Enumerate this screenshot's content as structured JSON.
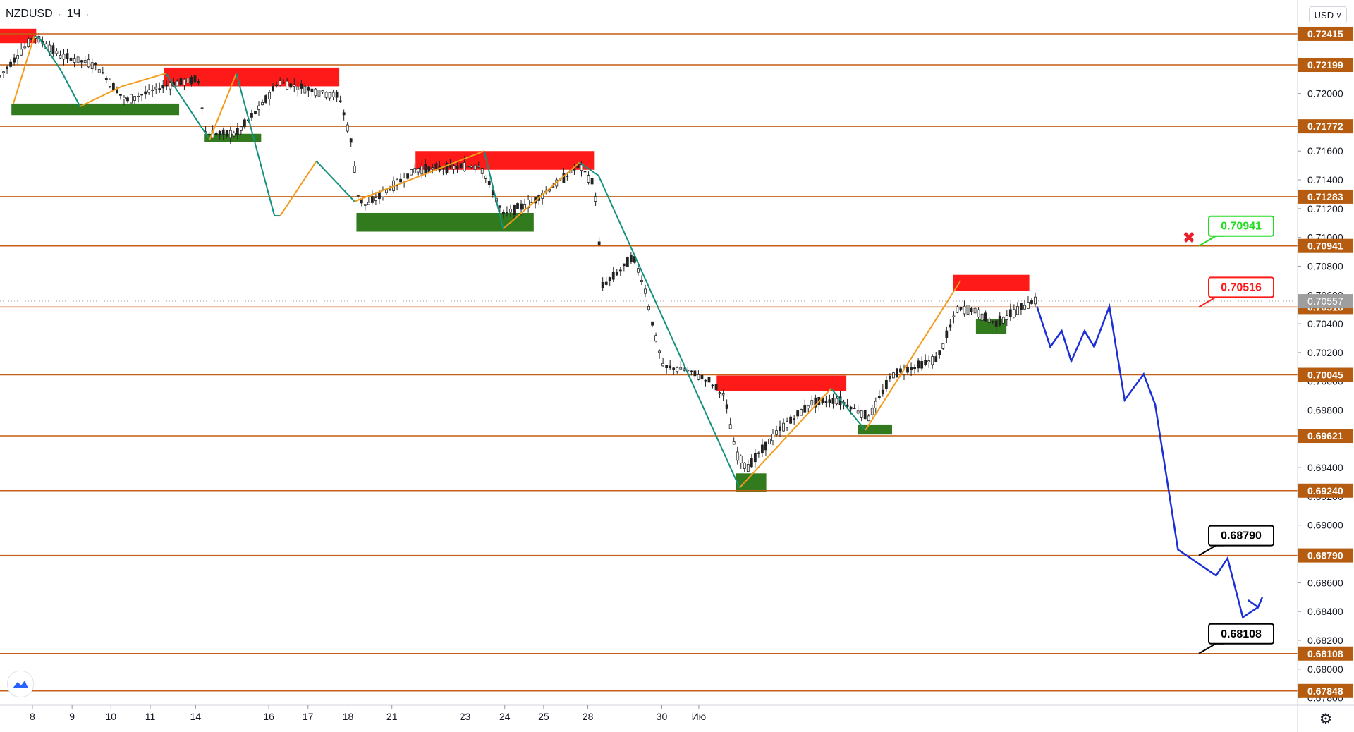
{
  "symbol": "NZDUSD",
  "interval": "1Ч",
  "currency_selector": "USD",
  "colors": {
    "level_line": "#c45f14",
    "level_label_bg": "#b65c10",
    "resistance_zone": "#ff1a1a",
    "support_zone": "#327a1e",
    "swing_up": "#f39b1a",
    "swing_down": "#14907e",
    "forecast": "#1a2fd6",
    "candle": "#222222",
    "price_badge": "#9e9e9e"
  },
  "price_axis": {
    "ticks": [
      "0.72000",
      "0.71600",
      "0.71400",
      "0.71200",
      "0.71000",
      "0.70800",
      "0.70600",
      "0.70400",
      "0.70200",
      "0.70000",
      "0.69800",
      "0.69600",
      "0.69400",
      "0.69200",
      "0.69000",
      "0.68600",
      "0.68400",
      "0.68200",
      "0.68000",
      "0.67800"
    ],
    "current_price": "0.70557"
  },
  "time_axis": {
    "labels": [
      "8",
      "9",
      "10",
      "11",
      "14",
      "16",
      "17",
      "18",
      "21",
      "23",
      "24",
      "25",
      "28",
      "30",
      "Ию"
    ]
  },
  "levels": [
    "0.72415",
    "0.72199",
    "0.71772",
    "0.71283",
    "0.70941",
    "0.70516",
    "0.70045",
    "0.69621",
    "0.69240",
    "0.68790",
    "0.68108",
    "0.67848"
  ],
  "callouts": [
    {
      "text": "0.70941",
      "color": "#22dd22",
      "kind": "stop"
    },
    {
      "text": "0.70516",
      "color": "#ff1a1a",
      "kind": "entry"
    },
    {
      "text": "0.68790",
      "color": "#000000",
      "kind": "target"
    },
    {
      "text": "0.68108",
      "color": "#000000",
      "kind": "target"
    }
  ],
  "stop_marker": "✖",
  "chart_data": {
    "type": "line",
    "title": "NZDUSD",
    "xlabel": "",
    "ylabel": "",
    "ylim": [
      0.677,
      0.7265
    ],
    "x_range": [
      0,
      34
    ],
    "grid": false,
    "horizontal_levels": [
      0.72415,
      0.72199,
      0.71772,
      0.71283,
      0.70941,
      0.70516,
      0.70045,
      0.69621,
      0.6924,
      0.6879,
      0.68108,
      0.67848
    ],
    "resistance_zones": [
      {
        "x": [
          0.0,
          0.95
        ],
        "y": [
          0.7235,
          0.7245
        ]
      },
      {
        "x": [
          4.3,
          8.9
        ],
        "y": [
          0.7205,
          0.7218
        ]
      },
      {
        "x": [
          10.9,
          15.6
        ],
        "y": [
          0.7147,
          0.716
        ]
      },
      {
        "x": [
          18.8,
          22.2
        ],
        "y": [
          0.6993,
          0.7004
        ]
      },
      {
        "x": [
          25.0,
          27.0
        ],
        "y": [
          0.7063,
          0.7074
        ]
      }
    ],
    "support_zones": [
      {
        "x": [
          0.3,
          4.7
        ],
        "y": [
          0.7185,
          0.7193
        ]
      },
      {
        "x": [
          5.35,
          6.85
        ],
        "y": [
          0.7166,
          0.7172
        ]
      },
      {
        "x": [
          9.35,
          14.0
        ],
        "y": [
          0.7104,
          0.7117
        ]
      },
      {
        "x": [
          19.3,
          20.1
        ],
        "y": [
          0.6923,
          0.6936
        ]
      },
      {
        "x": [
          22.5,
          23.4
        ],
        "y": [
          0.6963,
          0.697
        ]
      },
      {
        "x": [
          25.6,
          26.4
        ],
        "y": [
          0.7033,
          0.7043
        ]
      }
    ],
    "series": [
      {
        "x": [
          0.35,
          0.9,
          1.05,
          1.6,
          2.1,
          3.2,
          4.35,
          5.5,
          6.2,
          7.2,
          7.35,
          8.3,
          9.3,
          12.7,
          13.2,
          15.2,
          15.7,
          19.4,
          21.8,
          22.7,
          25.2
        ],
        "y": [
          0.7193,
          0.724,
          0.7238,
          0.7216,
          0.7191,
          0.7205,
          0.7214,
          0.7168,
          0.7214,
          0.7115,
          0.7115,
          0.7153,
          0.7125,
          0.716,
          0.7106,
          0.7152,
          0.7143,
          0.6926,
          0.6995,
          0.6966,
          0.707
        ]
      },
      {
        "x": [
          27.2,
          27.55,
          27.85,
          28.1,
          28.45,
          28.7,
          29.1,
          29.5,
          30.0,
          30.3,
          30.9,
          31.9,
          32.2,
          32.6,
          33.0
        ],
        "y": [
          0.7052,
          0.7024,
          0.7035,
          0.7014,
          0.7035,
          0.7024,
          0.7052,
          0.6987,
          0.7005,
          0.6984,
          0.6883,
          0.6865,
          0.6877,
          0.6836,
          0.6843
        ]
      }
    ],
    "candles": {
      "x_start": 0.0,
      "x_end": 27.2,
      "anchors": [
        [
          0.0,
          0.7212
        ],
        [
          0.9,
          0.724
        ],
        [
          1.6,
          0.7226
        ],
        [
          2.5,
          0.722
        ],
        [
          3.3,
          0.7195
        ],
        [
          4.4,
          0.7206
        ],
        [
          5.2,
          0.721
        ],
        [
          5.4,
          0.7172
        ],
        [
          6.2,
          0.7172
        ],
        [
          6.9,
          0.7193
        ],
        [
          7.3,
          0.7208
        ],
        [
          8.9,
          0.7198
        ],
        [
          9.2,
          0.7168
        ],
        [
          9.4,
          0.7128
        ],
        [
          9.6,
          0.7122
        ],
        [
          10.9,
          0.7147
        ],
        [
          12.6,
          0.715
        ],
        [
          13.2,
          0.7116
        ],
        [
          14.0,
          0.7125
        ],
        [
          15.2,
          0.715
        ],
        [
          15.6,
          0.7136
        ],
        [
          15.8,
          0.7066
        ],
        [
          16.3,
          0.7078
        ],
        [
          16.6,
          0.7087
        ],
        [
          16.9,
          0.7066
        ],
        [
          17.2,
          0.703
        ],
        [
          17.4,
          0.701
        ],
        [
          18.0,
          0.7008
        ],
        [
          18.6,
          0.7
        ],
        [
          19.0,
          0.699
        ],
        [
          19.3,
          0.695
        ],
        [
          19.6,
          0.694
        ],
        [
          20.4,
          0.6965
        ],
        [
          21.3,
          0.6985
        ],
        [
          22.0,
          0.6987
        ],
        [
          22.8,
          0.6975
        ],
        [
          23.4,
          0.7005
        ],
        [
          24.0,
          0.701
        ],
        [
          24.6,
          0.7016
        ],
        [
          25.1,
          0.705
        ],
        [
          25.5,
          0.705
        ],
        [
          26.1,
          0.704
        ],
        [
          27.1,
          0.7056
        ]
      ]
    },
    "forecast": {
      "start": [
        27.2,
        0.7052
      ],
      "end": [
        33.0,
        0.6843
      ]
    }
  }
}
